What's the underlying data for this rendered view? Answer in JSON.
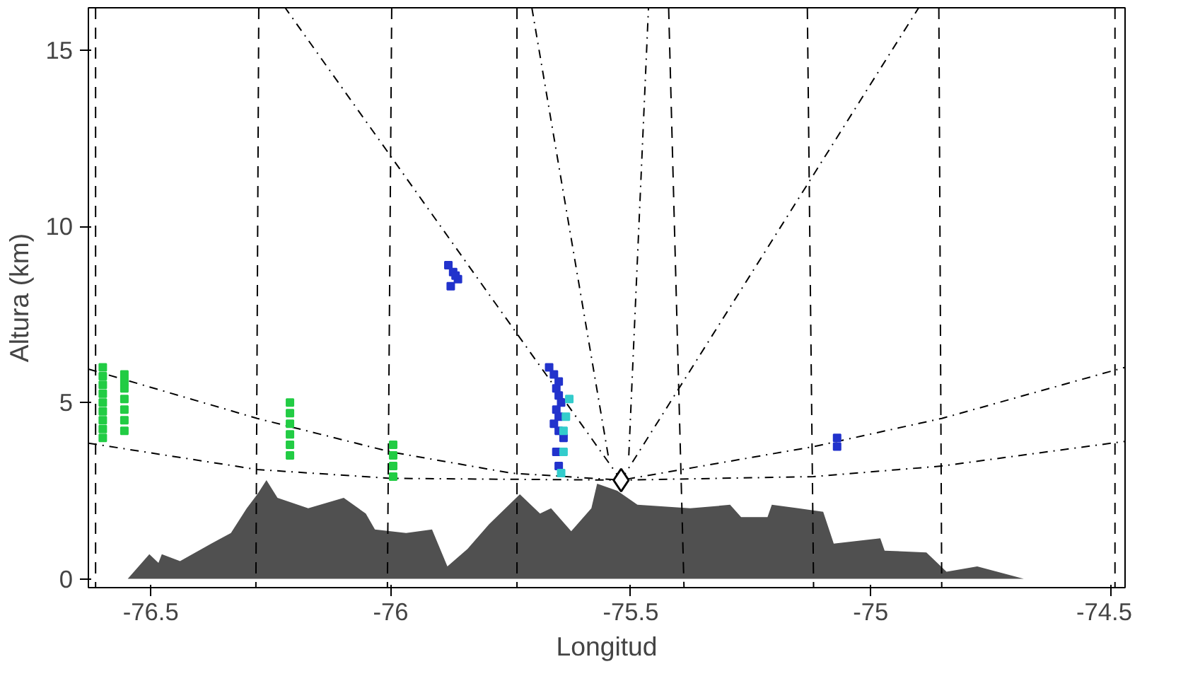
{
  "chart_data": {
    "type": "line",
    "xlabel": "Longitud",
    "ylabel": "Altura (km)",
    "xlim": [
      -76.63,
      -74.47
    ],
    "ylim": [
      -0.25,
      16.2
    ],
    "xticks": [
      -76.5,
      -76.0,
      -75.5,
      -75.0,
      -74.5
    ],
    "yticks": [
      0,
      5,
      10,
      15
    ],
    "grid": false,
    "series": [
      {
        "type": "area",
        "color": "#505050",
        "x": [
          -76.63,
          -76.548,
          -76.503,
          -76.484,
          -76.477,
          -76.439,
          -76.374,
          -76.333,
          -76.3,
          -76.278,
          -76.259,
          -76.236,
          -76.172,
          -76.098,
          -76.052,
          -76.033,
          -75.968,
          -75.914,
          -75.882,
          -75.84,
          -75.795,
          -75.731,
          -75.689,
          -75.666,
          -75.624,
          -75.582,
          -75.57,
          -75.528,
          -75.486,
          -75.376,
          -75.293,
          -75.27,
          -75.215,
          -75.206,
          -75.151,
          -75.099,
          -75.077,
          -74.98,
          -74.971,
          -74.884,
          -74.842,
          -74.778,
          -74.681,
          -74.488,
          -74.47
        ],
        "values": [
          0,
          0,
          0.7,
          0.45,
          0.7,
          0.5,
          1.0,
          1.3,
          2.0,
          2.4,
          2.8,
          2.3,
          2.0,
          2.3,
          1.85,
          1.4,
          1.3,
          1.4,
          0.35,
          0.85,
          1.55,
          2.4,
          1.85,
          2.0,
          1.35,
          2.0,
          2.7,
          2.5,
          2.1,
          2.0,
          2.1,
          1.75,
          1.75,
          2.1,
          2.0,
          1.9,
          1.0,
          1.15,
          0.8,
          0.75,
          0.2,
          0.35,
          0,
          0,
          0
        ]
      },
      {
        "line_style": "dashed",
        "color": "#000000",
        "x": [
          -76.615,
          -76.615
        ],
        "values": [
          16.2,
          -0.25
        ]
      },
      {
        "line_style": "dashed",
        "color": "#000000",
        "x": [
          -76.275,
          -76.281
        ],
        "values": [
          16.2,
          -0.25
        ]
      },
      {
        "line_style": "dashed",
        "color": "#000000",
        "x": [
          -75.998,
          -76.007
        ],
        "values": [
          16.2,
          -0.25
        ]
      },
      {
        "line_style": "dashed",
        "color": "#000000",
        "x": [
          -75.737,
          -75.737
        ],
        "values": [
          16.2,
          -0.25
        ]
      },
      {
        "line_style": "dashed",
        "color": "#000000",
        "x": [
          -75.421,
          -75.389
        ],
        "values": [
          16.2,
          -0.25
        ]
      },
      {
        "line_style": "dashed",
        "color": "#000000",
        "x": [
          -75.132,
          -75.119
        ],
        "values": [
          16.2,
          -0.25
        ]
      },
      {
        "line_style": "dashed",
        "color": "#000000",
        "x": [
          -74.858,
          -74.852
        ],
        "values": [
          16.2,
          -0.25
        ]
      },
      {
        "line_style": "dashed",
        "color": "#000000",
        "x": [
          -74.491,
          -74.491
        ],
        "values": [
          16.2,
          -0.25
        ]
      },
      {
        "line_style": "dashdot",
        "color": "#000000",
        "x": [
          -76.63,
          -76.278,
          -76.0,
          -75.75,
          -75.52,
          -75.119,
          -74.852,
          -74.47
        ],
        "values": [
          5.95,
          4.55,
          3.6,
          3.0,
          2.8,
          3.75,
          4.55,
          6.0
        ]
      },
      {
        "line_style": "dashdot",
        "color": "#000000",
        "x": [
          -76.63,
          -76.278,
          -76.0,
          -75.52,
          -75.119,
          -74.852,
          -74.47
        ],
        "values": [
          3.85,
          3.1,
          2.85,
          2.8,
          2.9,
          3.2,
          3.9
        ]
      },
      {
        "line_style": "dashdot",
        "color": "#000000",
        "x": [
          -75.52,
          -76.22
        ],
        "values": [
          2.8,
          16.2
        ]
      },
      {
        "type": "line",
        "line_style": "dashdot",
        "color": "#000000",
        "x": [
          -75.547,
          -75.706
        ],
        "values": [
          3.5,
          16.2
        ]
      },
      {
        "type": "line",
        "line_style": "dashdot",
        "color": "#000000",
        "x": [
          -75.504,
          -75.463
        ],
        "values": [
          3.5,
          16.2
        ]
      },
      {
        "line_style": "dashdot",
        "color": "#000000",
        "x": [
          -75.52,
          -74.9
        ],
        "values": [
          2.8,
          16.2
        ]
      },
      {
        "type": "scatter",
        "marker": "square",
        "color": "#22cc44",
        "x": [
          -76.6,
          -76.6,
          -76.6,
          -76.6,
          -76.6,
          -76.6,
          -76.6,
          -76.6,
          -76.6,
          -76.555,
          -76.555,
          -76.555,
          -76.555,
          -76.555,
          -76.555,
          -76.555,
          -76.21,
          -76.21,
          -76.21,
          -76.21,
          -76.21,
          -76.21,
          -75.995,
          -75.995,
          -75.995,
          -75.995
        ],
        "values": [
          4.0,
          4.25,
          4.5,
          4.75,
          5.0,
          5.25,
          5.5,
          5.75,
          6.0,
          4.2,
          4.5,
          4.8,
          5.1,
          5.4,
          5.6,
          5.8,
          3.5,
          3.8,
          4.1,
          4.4,
          4.7,
          5.0,
          2.9,
          3.2,
          3.5,
          3.8
        ]
      },
      {
        "type": "scatter",
        "marker": "square",
        "color": "#2233cc",
        "x": [
          -75.88,
          -75.87,
          -75.86,
          -75.875,
          -75.865,
          -75.67,
          -75.66,
          -75.65,
          -75.655,
          -75.65,
          -75.645,
          -75.655,
          -75.65,
          -75.66,
          -75.65,
          -75.64,
          -75.655,
          -75.65,
          -75.07,
          -75.07
        ],
        "values": [
          8.9,
          8.7,
          8.5,
          8.3,
          8.6,
          6.0,
          5.8,
          5.6,
          5.4,
          5.2,
          5.0,
          4.8,
          4.6,
          4.4,
          4.2,
          4.0,
          3.6,
          3.2,
          3.75,
          4.0
        ]
      },
      {
        "type": "scatter",
        "marker": "square",
        "color": "#33cccc",
        "x": [
          -75.628,
          -75.635,
          -75.64,
          -75.64,
          -75.645
        ],
        "values": [
          5.1,
          4.6,
          4.2,
          3.6,
          3.0
        ]
      },
      {
        "type": "scatter",
        "marker": "diamond",
        "color": "#000000",
        "x": [
          -75.52
        ],
        "values": [
          2.8
        ]
      }
    ]
  }
}
